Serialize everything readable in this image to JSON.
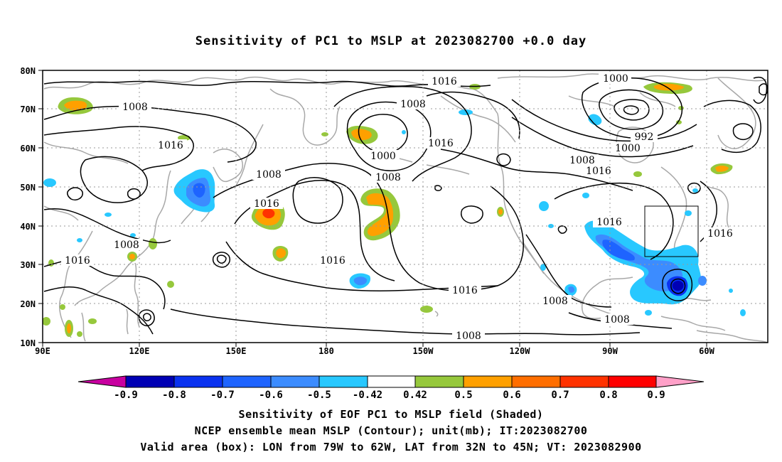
{
  "title": "Sensitivity of PC1 to MSLP at 2023082700 +0.0 day",
  "lat_labels": [
    "80N",
    "70N",
    "60N",
    "50N",
    "40N",
    "30N",
    "20N",
    "10N"
  ],
  "lon_labels": [
    "90E",
    "120E",
    "150E",
    "180",
    "150W",
    "120W",
    "90W",
    "60W"
  ],
  "contour_labels": [
    {
      "text": "1016",
      "name": "contour-label-1016-north-pacific"
    },
    {
      "text": "1008",
      "name": "contour-label-1008-north-pacific"
    },
    {
      "text": "1000",
      "name": "contour-label-1000-canada-low"
    },
    {
      "text": "992",
      "name": "contour-label-992-canada-low"
    },
    {
      "text": "1000",
      "name": "contour-label-1000-canada-low-south"
    },
    {
      "text": "1008",
      "name": "contour-label-1008-canada"
    },
    {
      "text": "1016",
      "name": "contour-label-1016-canada"
    },
    {
      "text": "1008",
      "name": "contour-label-1008-siberia"
    },
    {
      "text": "1016",
      "name": "contour-label-1016-siberia"
    },
    {
      "text": "1008",
      "name": "contour-label-1008-china"
    },
    {
      "text": "1016",
      "name": "contour-label-1016-west-pacific"
    },
    {
      "text": "1008",
      "name": "contour-label-1008-bering"
    },
    {
      "text": "1016",
      "name": "contour-label-1016-alaska"
    },
    {
      "text": "1000",
      "name": "contour-label-1000-bering-low"
    },
    {
      "text": "1008",
      "name": "contour-label-1008-aleutian"
    },
    {
      "text": "1008",
      "name": "contour-label-1008-east-asia"
    },
    {
      "text": "1016",
      "name": "contour-label-1016-south-china"
    },
    {
      "text": "1016",
      "name": "contour-label-1016-central-pacific"
    },
    {
      "text": "1016",
      "name": "contour-label-1016-subtropical"
    },
    {
      "text": "1008",
      "name": "contour-label-1008-east-pacific"
    },
    {
      "text": "1008",
      "name": "contour-label-1008-central-america"
    },
    {
      "text": "1008",
      "name": "contour-label-1008-tropical-pacific"
    },
    {
      "text": "1016",
      "name": "contour-label-1016-us-east"
    },
    {
      "text": "1016",
      "name": "contour-label-1016-atlantic"
    }
  ],
  "colorbar": {
    "labels": [
      "-0.9",
      "-0.8",
      "-0.7",
      "-0.6",
      "-0.5",
      "-0.42",
      "0.42",
      "0.5",
      "0.6",
      "0.7",
      "0.8",
      "0.9"
    ],
    "colors": [
      "#c800a0",
      "#0000b4",
      "#0a32f0",
      "#1e64ff",
      "#3c8cff",
      "#28c8ff",
      "#ffffff",
      "#96c83c",
      "#ffa000",
      "#ff6e00",
      "#ff3200",
      "#ff0000",
      "#ffa0c8"
    ]
  },
  "captions": [
    "Sensitivity of EOF PC1 to MSLP field (Shaded)",
    "NCEP ensemble mean MSLP (Contour); unit(mb); IT:2023082700",
    "Valid area (box): LON from 79W to 62W, LAT from 32N to 45N; VT: 2023082900"
  ]
}
